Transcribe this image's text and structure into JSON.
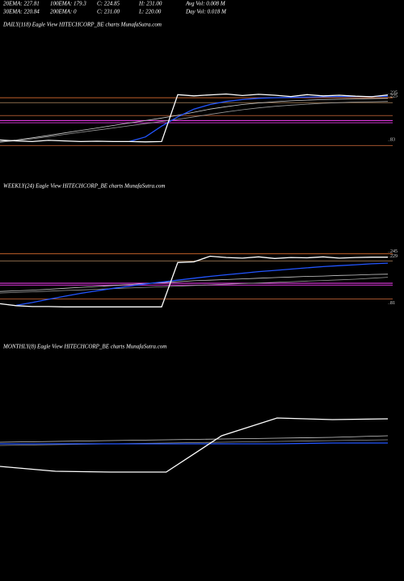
{
  "header": [
    [
      "20EMA: 227.81",
      "100EMA: 179.3",
      "C: 224.85",
      "H: 231.00",
      "Avg Vol: 0.008  M"
    ],
    [
      "30EMA: 220.84",
      "200EMA: 0",
      "C: 231.00",
      "L: 220.00",
      "Day Vol: 0.018  M"
    ]
  ],
  "chart_data": [
    {
      "type": "line",
      "title": "DAILY(118) Eagle  View  HITECHCORP_BE charts MunafaSutra.com",
      "ylim": [
        0,
        400
      ],
      "yticks": [
        83,
        225,
        235
      ],
      "hlines": [
        {
          "value": 222,
          "color": "#c0602a"
        },
        {
          "value": 206,
          "color": "#8a6a4a"
        },
        {
          "value": 164,
          "color": "#a0522d"
        },
        {
          "value": 148,
          "color": "#ff40ff"
        },
        {
          "value": 141,
          "color": "#cc33cc"
        },
        {
          "value": 67,
          "color": "#a0522d"
        }
      ],
      "series": [
        {
          "color": "#999999",
          "values": [
            78,
            83,
            89,
            96,
            103,
            110,
            117,
            124,
            131,
            138,
            145,
            152,
            160,
            168,
            176,
            183,
            189,
            194,
            198,
            201,
            204,
            206,
            208,
            209,
            210
          ]
        },
        {
          "color": "#cccccc",
          "values": [
            80,
            85,
            92,
            100,
            108,
            116,
            124,
            132,
            140,
            148,
            156,
            165,
            175,
            185,
            193,
            200,
            205,
            209,
            212,
            214,
            216,
            217,
            218,
            219,
            220
          ]
        },
        {
          "color": "#2255ff",
          "values": [
            null,
            null,
            null,
            null,
            null,
            null,
            null,
            null,
            80,
            95,
            130,
            160,
            185,
            200,
            210,
            216,
            220,
            222,
            223,
            224,
            225,
            226,
            226,
            226,
            227
          ]
        },
        {
          "color": "#ffffff",
          "values": [
            85,
            82,
            80,
            84,
            82,
            80,
            81,
            80,
            80,
            79,
            80,
            232,
            228,
            231,
            234,
            229,
            233,
            230,
            226,
            232,
            228,
            230,
            227,
            225,
            231
          ]
        }
      ]
    },
    {
      "type": "line",
      "title": "WEEKLY(24) Eagle  View  HITECHCORP_BE charts MunafaSutra.com",
      "ylim": [
        0,
        400
      ],
      "yticks": [
        81,
        229,
        245
      ],
      "hlines": [
        {
          "value": 240,
          "color": "#c0602a"
        },
        {
          "value": 217,
          "color": "#8a6a4a"
        },
        {
          "value": 146,
          "color": "#ff40ff"
        },
        {
          "value": 140,
          "color": "#cc33cc"
        },
        {
          "value": 96,
          "color": "#a0522d"
        }
      ],
      "series": [
        {
          "color": "#999999",
          "values": [
            115,
            117,
            119,
            121,
            123,
            125,
            127,
            129,
            131,
            133,
            135,
            137,
            139,
            141,
            143,
            145,
            147,
            149,
            151,
            153,
            155,
            157,
            159,
            162,
            165
          ]
        },
        {
          "color": "#cccccc",
          "values": [
            120,
            122,
            124,
            127,
            130,
            133,
            136,
            139,
            142,
            145,
            148,
            151,
            154,
            156,
            158,
            160,
            162,
            164,
            166,
            168,
            169,
            171,
            172,
            174,
            175
          ]
        },
        {
          "color": "#2255ff",
          "values": [
            null,
            76,
            85,
            95,
            105,
            114,
            122,
            130,
            137,
            144,
            150,
            156,
            162,
            168,
            173,
            178,
            183,
            187,
            191,
            195,
            199,
            202,
            205,
            208,
            210
          ]
        },
        {
          "color": "#ffffff",
          "values": [
            81,
            75,
            72,
            72,
            71,
            71,
            71,
            71,
            71,
            71,
            71,
            212,
            214,
            232,
            228,
            226,
            230,
            225,
            228,
            227,
            230,
            226,
            228,
            229,
            229
          ]
        }
      ]
    },
    {
      "type": "line",
      "title": "MONTHLY(8) Eagle  View  HITECHCORP_BE charts MunafaSutra.com",
      "ylim": [
        0,
        260
      ],
      "yticks": [],
      "hlines": [],
      "series": [
        {
          "color": "#999999",
          "values": [
            148,
            149,
            150,
            151,
            152,
            153,
            154,
            155
          ]
        },
        {
          "color": "#cccccc",
          "values": [
            152,
            153,
            154,
            155,
            156,
            157,
            158,
            160
          ]
        },
        {
          "color": "#2255ff",
          "values": [
            150,
            150,
            150,
            150,
            150,
            150,
            151,
            151
          ]
        },
        {
          "color": "#ffffff",
          "values": [
            122,
            116,
            115,
            115,
            160,
            182,
            180,
            181
          ]
        }
      ]
    }
  ]
}
